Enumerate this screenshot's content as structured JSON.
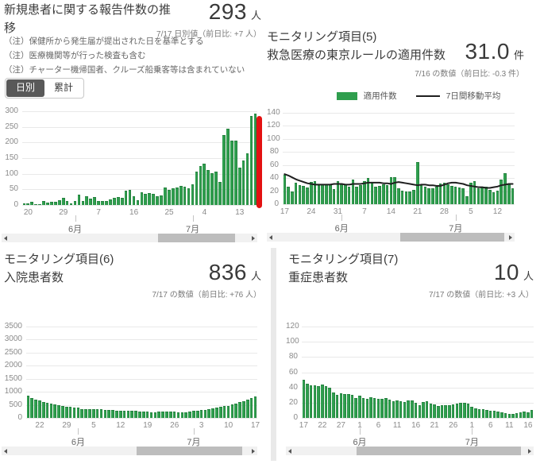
{
  "colors": {
    "bar_green": "#2f9e4e",
    "bar_edge": "#1d7e3b",
    "avg_line": "#1f1f1f",
    "latest_marker_red": "#e31111",
    "toggle_active_bg": "#595959"
  },
  "panels": {
    "new_cases": {
      "title": "新規患者に関する報告件数の推移",
      "value": "293",
      "unit": "人",
      "caption": "7/17 日別値（前日比: +7 人）",
      "notes": [
        "（注）保健所から発生届が提出された日を基準とする",
        "（注）医療機関等が行った検査も含む",
        "（注）チャーター機帰国者、クルーズ船乗客等は含まれていない"
      ],
      "toggle": {
        "daily": "日別",
        "cumulative": "累計"
      }
    },
    "tokyo_rule": {
      "category": "モニタリング項目(5)",
      "title": "救急医療の東京ルールの適用件数",
      "value": "31.0",
      "unit": "件",
      "caption": "7/16 の数値（前日比: -0.3 件）",
      "legend": {
        "bars": "適用件数",
        "line": "7日間移動平均"
      }
    },
    "hospitalized": {
      "category": "モニタリング項目(6)",
      "title": "入院患者数",
      "value": "836",
      "unit": "人",
      "caption": "7/17 の数値（前日比: +76 人）"
    },
    "severe": {
      "category": "モニタリング項目(7)",
      "title": "重症患者数",
      "value": "10",
      "unit": "人",
      "caption": "7/17 の数値（前日比: +3 人）"
    }
  },
  "chart_data": [
    {
      "type": "bar",
      "title": "新規患者に関する報告件数の推移",
      "xlabel": "",
      "ylabel": "",
      "ylim": [
        0,
        300
      ],
      "yticks": [
        0,
        50,
        100,
        150,
        200,
        250,
        300
      ],
      "grid": true,
      "date_range": "5/19 - 7/17 (daily)",
      "values": [
        5,
        5,
        11,
        3,
        2,
        14,
        8,
        10,
        11,
        15,
        22,
        14,
        5,
        13,
        34,
        12,
        28,
        20,
        26,
        14,
        13,
        12,
        18,
        22,
        25,
        24,
        47,
        48,
        27,
        16,
        41,
        35,
        39,
        35,
        29,
        31,
        55,
        48,
        54,
        57,
        60,
        58,
        54,
        67,
        107,
        124,
        131,
        111,
        102,
        106,
        75,
        224,
        243,
        206,
        206,
        119,
        143,
        165,
        286,
        293
      ],
      "x_ticks": [
        {
          "i": 1,
          "label": "20"
        },
        {
          "i": 10,
          "label": "29"
        },
        {
          "i": 19,
          "label": "7"
        },
        {
          "i": 28,
          "label": "16"
        },
        {
          "i": 37,
          "label": "25"
        },
        {
          "i": 46,
          "label": "4"
        },
        {
          "i": 55,
          "label": "13"
        }
      ],
      "months": [
        {
          "i": 13,
          "label": "6月"
        },
        {
          "i": 43,
          "label": "7月"
        }
      ],
      "latest_marker": true,
      "scrollbar": {
        "start": 0.62,
        "width": 0.32
      }
    },
    {
      "type": "bar",
      "title": "救急医療の東京ルールの適用件数",
      "xlabel": "",
      "ylabel": "",
      "ylim": [
        0,
        140
      ],
      "yticks": [
        0,
        20,
        40,
        60,
        80,
        100,
        120,
        140
      ],
      "grid": true,
      "legend_position": "top",
      "date_range": "5/17 - 7/16 (daily)",
      "values": [
        45,
        27,
        19,
        33,
        29,
        28,
        26,
        34,
        35,
        29,
        30,
        30,
        31,
        23,
        35,
        31,
        30,
        27,
        38,
        27,
        29,
        35,
        40,
        33,
        27,
        28,
        31,
        29,
        41,
        41,
        24,
        21,
        19,
        20,
        22,
        64,
        29,
        27,
        24,
        24,
        27,
        32,
        33,
        31,
        28,
        27,
        25,
        24,
        12,
        33,
        35,
        24,
        26,
        27,
        22,
        18,
        21,
        38,
        47,
        30,
        24
      ],
      "line": {
        "name": "7日間移動平均",
        "values": [
          46,
          44,
          41,
          38,
          36,
          34,
          32,
          31,
          30,
          30,
          30,
          30,
          30,
          31,
          31,
          31,
          30,
          30,
          31,
          31,
          31,
          32,
          33,
          33,
          33,
          33,
          32,
          32,
          31,
          33,
          34,
          33,
          32,
          31,
          30,
          29,
          30,
          30,
          29,
          29,
          28,
          28,
          30,
          32,
          33,
          33,
          32,
          31,
          29,
          28,
          27,
          26,
          26,
          25,
          25,
          26,
          27,
          29,
          30,
          31,
          31
        ]
      },
      "x_ticks": [
        {
          "i": 0,
          "label": "17"
        },
        {
          "i": 7,
          "label": "24"
        },
        {
          "i": 14,
          "label": "31"
        },
        {
          "i": 21,
          "label": "7"
        },
        {
          "i": 28,
          "label": "14"
        },
        {
          "i": 35,
          "label": "21"
        },
        {
          "i": 42,
          "label": "28"
        },
        {
          "i": 49,
          "label": "5"
        },
        {
          "i": 56,
          "label": "12"
        }
      ],
      "months": [
        {
          "i": 15,
          "label": "6月"
        },
        {
          "i": 45,
          "label": "7月"
        }
      ],
      "latest_marker": false,
      "scrollbar": {
        "start": 0.54,
        "width": 0.45
      }
    },
    {
      "type": "bar",
      "title": "入院患者数",
      "xlabel": "",
      "ylabel": "",
      "ylim": [
        0,
        3500
      ],
      "yticks": [
        0,
        500,
        1000,
        1500,
        2000,
        2500,
        3000,
        3500
      ],
      "grid": true,
      "date_range": "5/19 - 7/17 (daily)",
      "values": [
        850,
        775,
        705,
        655,
        610,
        575,
        545,
        510,
        480,
        455,
        435,
        415,
        400,
        390,
        350,
        340,
        335,
        340,
        325,
        330,
        315,
        300,
        295,
        285,
        280,
        275,
        272,
        280,
        270,
        258,
        248,
        236,
        228,
        224,
        230,
        240,
        248,
        242,
        230,
        220,
        212,
        210,
        240,
        262,
        285,
        300,
        320,
        340,
        370,
        400,
        430,
        450,
        470,
        510,
        560,
        610,
        650,
        690,
        760,
        836
      ],
      "x_ticks": [
        {
          "i": 3,
          "label": "22"
        },
        {
          "i": 10,
          "label": "29"
        },
        {
          "i": 17,
          "label": "5"
        },
        {
          "i": 24,
          "label": "12"
        },
        {
          "i": 31,
          "label": "19"
        },
        {
          "i": 38,
          "label": "26"
        },
        {
          "i": 45,
          "label": "3"
        },
        {
          "i": 52,
          "label": "10"
        },
        {
          "i": 59,
          "label": "17"
        }
      ],
      "months": [
        {
          "i": 13,
          "label": "6月"
        },
        {
          "i": 43,
          "label": "7月"
        }
      ],
      "latest_marker": false,
      "scrollbar": {
        "start": 0.53,
        "width": 0.44
      }
    },
    {
      "type": "bar",
      "title": "重症患者数",
      "xlabel": "",
      "ylabel": "",
      "ylim": [
        0,
        120
      ],
      "yticks": [
        0,
        20,
        40,
        60,
        80,
        100,
        120
      ],
      "grid": true,
      "date_range": "5/17 - 7/17 (daily)",
      "values": [
        50,
        45,
        43,
        43,
        42,
        44,
        42,
        40,
        33,
        30,
        32,
        31,
        31,
        30,
        26,
        29,
        26,
        25,
        27,
        26,
        25,
        25,
        26,
        24,
        22,
        23,
        22,
        21,
        23,
        23,
        20,
        17,
        21,
        22,
        19,
        18,
        16,
        17,
        17,
        17,
        18,
        19,
        20,
        20,
        19,
        15,
        13,
        12,
        11,
        10,
        9,
        9,
        8,
        7,
        6,
        5,
        5,
        6,
        7,
        8,
        7,
        10
      ],
      "x_ticks": [
        {
          "i": 0,
          "label": "17"
        },
        {
          "i": 5,
          "label": "22"
        },
        {
          "i": 10,
          "label": "27"
        },
        {
          "i": 15,
          "label": "1"
        },
        {
          "i": 20,
          "label": "6"
        },
        {
          "i": 25,
          "label": "11"
        },
        {
          "i": 30,
          "label": "16"
        },
        {
          "i": 35,
          "label": "21"
        },
        {
          "i": 40,
          "label": "26"
        },
        {
          "i": 45,
          "label": "1"
        },
        {
          "i": 50,
          "label": "6"
        },
        {
          "i": 55,
          "label": "11"
        },
        {
          "i": 60,
          "label": "16"
        }
      ],
      "months": [
        {
          "i": 15,
          "label": "6月"
        },
        {
          "i": 45,
          "label": "7月"
        }
      ],
      "latest_marker": false,
      "scrollbar": {
        "start": 0.27,
        "width": 0.71
      }
    }
  ]
}
